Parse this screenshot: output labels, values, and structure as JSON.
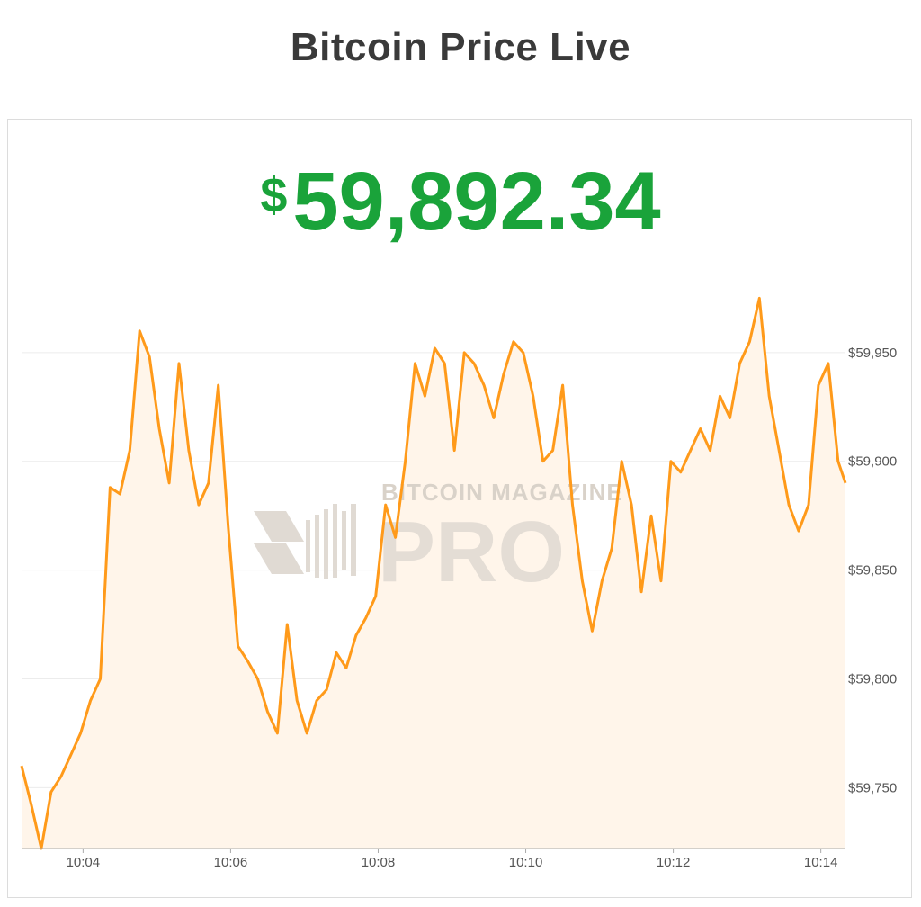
{
  "title": "Bitcoin Price Live",
  "price": {
    "currency_symbol": "$",
    "value": "59,892.34"
  },
  "watermark": {
    "line1": "BITCOIN MAGAZINE",
    "line2": "PRO"
  },
  "colors": {
    "line": "#ff9a1a",
    "fill": "#fff5ea",
    "price": "#1aa33a",
    "grid": "#ececec"
  },
  "chart_data": {
    "type": "area",
    "x_ticks": [
      "10:04",
      "10:06",
      "10:08",
      "10:10",
      "10:12",
      "10:14"
    ],
    "y_ticks": [
      "$59,750",
      "$59,800",
      "$59,850",
      "$59,900",
      "$59,950"
    ],
    "ylim": [
      59722,
      59988
    ],
    "y_tick_values": [
      59750,
      59800,
      59850,
      59900,
      59950
    ],
    "x_start": "10:03:10",
    "x_end": "10:14:20",
    "grid": true,
    "legend": "none",
    "x": [
      "10:03:10",
      "10:03:18",
      "10:03:26",
      "10:03:34",
      "10:03:42",
      "10:03:50",
      "10:03:58",
      "10:04:06",
      "10:04:14",
      "10:04:22",
      "10:04:30",
      "10:04:38",
      "10:04:46",
      "10:04:54",
      "10:05:02",
      "10:05:10",
      "10:05:18",
      "10:05:26",
      "10:05:34",
      "10:05:42",
      "10:05:50",
      "10:05:58",
      "10:06:06",
      "10:06:14",
      "10:06:22",
      "10:06:30",
      "10:06:38",
      "10:06:46",
      "10:06:54",
      "10:07:02",
      "10:07:10",
      "10:07:18",
      "10:07:26",
      "10:07:34",
      "10:07:42",
      "10:07:50",
      "10:07:58",
      "10:08:06",
      "10:08:14",
      "10:08:22",
      "10:08:30",
      "10:08:38",
      "10:08:46",
      "10:08:54",
      "10:09:02",
      "10:09:10",
      "10:09:18",
      "10:09:26",
      "10:09:34",
      "10:09:42",
      "10:09:50",
      "10:09:58",
      "10:10:06",
      "10:10:14",
      "10:10:22",
      "10:10:30",
      "10:10:38",
      "10:10:46",
      "10:10:54",
      "10:11:02",
      "10:11:10",
      "10:11:18",
      "10:11:26",
      "10:11:34",
      "10:11:42",
      "10:11:50",
      "10:11:58",
      "10:12:06",
      "10:12:14",
      "10:12:22",
      "10:12:30",
      "10:12:38",
      "10:12:46",
      "10:12:54",
      "10:13:02",
      "10:13:10",
      "10:13:18",
      "10:13:26",
      "10:13:34",
      "10:13:42",
      "10:13:50",
      "10:13:58",
      "10:14:06",
      "10:14:14",
      "10:14:20"
    ],
    "values": [
      59760,
      59742,
      59722,
      59748,
      59755,
      59765,
      59775,
      59790,
      59800,
      59888,
      59885,
      59905,
      59960,
      59948,
      59915,
      59890,
      59945,
      59905,
      59880,
      59890,
      59935,
      59870,
      59815,
      59808,
      59800,
      59785,
      59775,
      59825,
      59790,
      59775,
      59790,
      59795,
      59812,
      59805,
      59820,
      59828,
      59838,
      59880,
      59865,
      59900,
      59945,
      59930,
      59952,
      59945,
      59905,
      59950,
      59945,
      59935,
      59920,
      59940,
      59955,
      59950,
      59930,
      59900,
      59905,
      59935,
      59880,
      59845,
      59822,
      59845,
      59860,
      59900,
      59880,
      59840,
      59875,
      59845,
      59900,
      59895,
      59905,
      59915,
      59905,
      59930,
      59920,
      59945,
      59955,
      59975,
      59930,
      59905,
      59880,
      59868,
      59880,
      59935,
      59945,
      59900,
      59890
    ]
  }
}
